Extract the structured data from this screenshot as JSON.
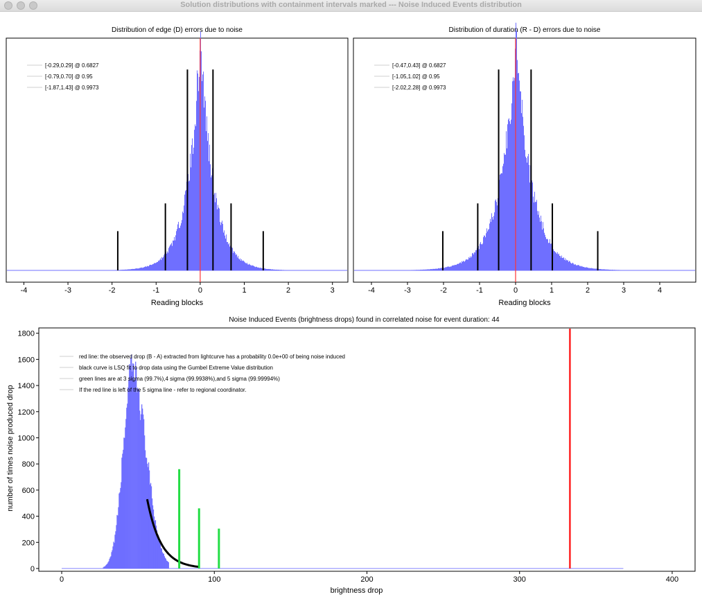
{
  "window": {
    "title": "Solution distributions with containment intervals marked --- Noise Induced Events distribution"
  },
  "chart_data": [
    {
      "type": "bar",
      "title": "Distribution of edge (D) errors due to noise",
      "xlabel": "Reading blocks",
      "ylabel": "",
      "xlim": [
        -4.4,
        3.35
      ],
      "xticks": [
        -4,
        -3,
        -2,
        -1,
        0,
        1,
        2,
        3
      ],
      "center": 0.0,
      "dist": {
        "peak": 0.0,
        "sigma_left": 0.3,
        "sigma_right": 0.3
      },
      "red_line_x": 0.0,
      "legend": [
        {
          "label": "[-0.29,0.29] @ 0.6827"
        },
        {
          "label": "[-0.79,0.70] @ 0.95"
        },
        {
          "label": "[-1.87,1.43] @ 0.9973"
        }
      ],
      "intervals": [
        {
          "lo": -0.29,
          "hi": 0.29,
          "height": 0.87
        },
        {
          "lo": -0.79,
          "hi": 0.7,
          "height": 0.29
        },
        {
          "lo": -1.87,
          "hi": 1.43,
          "height": 0.17
        }
      ],
      "legend_position": "top-left",
      "colors": {
        "bars": "#6f6fff",
        "red": "#ff3333",
        "interval": "#000000"
      }
    },
    {
      "type": "bar",
      "title": "Distribution of duration (R - D) errors due to noise",
      "xlabel": "Reading blocks",
      "ylabel": "",
      "xlim": [
        -4.5,
        5.0
      ],
      "xticks": [
        -4,
        -3,
        -2,
        -1,
        0,
        1,
        2,
        3,
        4
      ],
      "center": 0.0,
      "dist": {
        "peak": 0.0,
        "sigma_left": 0.45,
        "sigma_right": 0.45
      },
      "red_line_x": 0.0,
      "legend": [
        {
          "label": "[-0.47,0.43] @ 0.6827"
        },
        {
          "label": "[-1.05,1.02] @ 0.95"
        },
        {
          "label": "[-2.02,2.28] @ 0.9973"
        }
      ],
      "intervals": [
        {
          "lo": -0.47,
          "hi": 0.43,
          "height": 0.87
        },
        {
          "lo": -1.05,
          "hi": 1.02,
          "height": 0.29
        },
        {
          "lo": -2.02,
          "hi": 2.28,
          "height": 0.17
        }
      ],
      "legend_position": "top-left",
      "colors": {
        "bars": "#6f6fff",
        "red": "#ff3333",
        "interval": "#000000"
      }
    },
    {
      "type": "bar",
      "title": "Noise Induced Events (brightness drops) found in correlated noise for event duration: 44",
      "xlabel": "brightness drop",
      "ylabel": "number of times noise produced drop",
      "xlim": [
        -15,
        415
      ],
      "ylim": [
        0,
        1830
      ],
      "xticks": [
        0,
        100,
        200,
        300,
        400
      ],
      "yticks": [
        0,
        200,
        400,
        600,
        800,
        1000,
        1200,
        1400,
        1600,
        1800
      ],
      "histogram": {
        "peak_x": 46,
        "peak_y": 1500,
        "sigma_left": 6,
        "sigma_right": 9,
        "start_x": 27,
        "end_x": 70
      },
      "fit_curve": {
        "x_start": 56,
        "x_end": 90,
        "y_start": 530,
        "decay": 9.0
      },
      "green_lines": [
        {
          "x": 77,
          "y": 760
        },
        {
          "x": 90,
          "y": 460
        },
        {
          "x": 103,
          "y": 305
        }
      ],
      "red_line_x": 333,
      "baseline_end_x": 368,
      "legend": [
        {
          "label": "red line: the observed drop (B - A) extracted from lightcurve has a probability 0.0e+00 of being noise induced"
        },
        {
          "label": "black curve is LSQ fit to drop data using the Gumbel Extreme Value distribution"
        },
        {
          "label": "green lines are at 3 sigma (99.7%),4 sigma (99.9938%),and 5 sigma (99.99994%)"
        },
        {
          "label": "If the red line is left of the 5 sigma line - refer to regional coordinator."
        }
      ],
      "legend_position": "top-left",
      "colors": {
        "bars": "#6f6fff",
        "red": "#ff2020",
        "green": "#22dd44",
        "fit": "#000000"
      }
    }
  ]
}
